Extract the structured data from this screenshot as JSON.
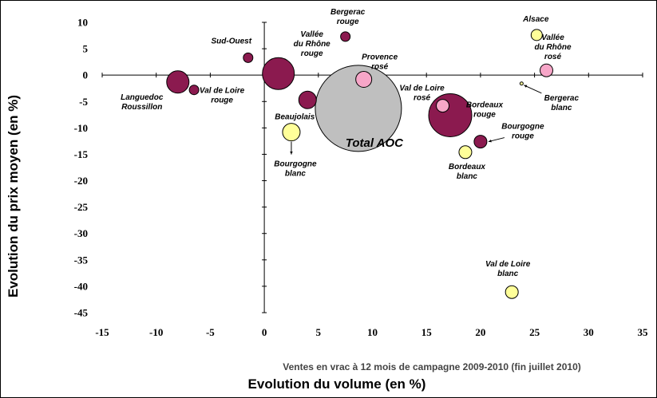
{
  "chart_data": {
    "type": "scatter",
    "variant": "bubble",
    "title": "",
    "subtitle": "Ventes en vrac à 12 mois de campagne 2009-2010 (fin juillet 2010)",
    "xlabel": "Evolution du volume (en %)",
    "ylabel": "Evolution du prix moyen (en %)",
    "xlim": [
      -15,
      35
    ],
    "ylim": [
      -45,
      10
    ],
    "x_ticks": [
      "-15",
      "-10",
      "-5",
      "0",
      "5",
      "10",
      "15",
      "20",
      "25",
      "30",
      "35"
    ],
    "y_ticks": [
      "10",
      "5",
      "0",
      "-5",
      "-10",
      "-15",
      "-20",
      "-25",
      "-30",
      "-35",
      "-40",
      "-45"
    ],
    "grid": false,
    "legend": "none",
    "colors": {
      "rouge": "#8b1a4f",
      "rose": "#f7a6c8",
      "blanc": "#ffff99",
      "total": "#bfbfbf",
      "outline": "#000000"
    },
    "points": [
      {
        "label": "Languedoc Roussillon",
        "lines": [
          "Languedoc",
          "Roussillon"
        ],
        "x": -8,
        "y": -1.3,
        "size": 14,
        "color": "rouge"
      },
      {
        "label": "Val de Loire rouge",
        "lines": [
          "Val de Loire",
          "rouge"
        ],
        "x": -6.5,
        "y": -2.8,
        "size": 6,
        "color": "rouge"
      },
      {
        "label": "Sud-Ouest",
        "lines": [
          "Sud-Ouest"
        ],
        "x": -1.5,
        "y": 3.3,
        "size": 6,
        "color": "rouge"
      },
      {
        "label": "Vallée du Rhône rouge",
        "lines": [
          "Vallée",
          "du Rhône",
          "rouge"
        ],
        "x": 1.3,
        "y": 0.3,
        "size": 20,
        "color": "rouge"
      },
      {
        "label": "Beaujolais",
        "lines": [
          "Beaujolais"
        ],
        "x": 4,
        "y": -4.7,
        "size": 11,
        "color": "rouge"
      },
      {
        "label": "Bourgogne blanc",
        "lines": [
          "Bourgogne",
          "blanc"
        ],
        "x": 2.5,
        "y": -10.8,
        "size": 11,
        "color": "blanc"
      },
      {
        "label": "Bergerac rouge",
        "lines": [
          "Bergerac",
          "rouge"
        ],
        "x": 7.5,
        "y": 7.3,
        "size": 6,
        "color": "rouge"
      },
      {
        "label": "Provence rosé",
        "lines": [
          "Provence",
          "rosé"
        ],
        "x": 9.2,
        "y": -0.8,
        "size": 10,
        "color": "rose"
      },
      {
        "label": "Total AOC",
        "lines": [
          "Total AOC"
        ],
        "x": 8.7,
        "y": -6.3,
        "size": 54,
        "color": "total"
      },
      {
        "label": "Val de Loire rosé",
        "lines": [
          "Val de Loire",
          "rosé"
        ],
        "x": 16.5,
        "y": -5.8,
        "size": 8,
        "color": "rose"
      },
      {
        "label": "Bordeaux rouge",
        "lines": [
          "Bordeaux",
          "rouge"
        ],
        "x": 17.2,
        "y": -7.6,
        "size": 27,
        "color": "rouge"
      },
      {
        "label": "Bourgogne rouge",
        "lines": [
          "Bourgogne",
          "rouge"
        ],
        "x": 20,
        "y": -12.6,
        "size": 8,
        "color": "rouge"
      },
      {
        "label": "Bordeaux blanc",
        "lines": [
          "Bordeaux",
          "blanc"
        ],
        "x": 18.6,
        "y": -14.6,
        "size": 8,
        "color": "blanc"
      },
      {
        "label": "Alsace",
        "lines": [
          "Alsace"
        ],
        "x": 25.2,
        "y": 7.6,
        "size": 7,
        "color": "blanc"
      },
      {
        "label": "Vallée du Rhône rosé",
        "lines": [
          "Vallée",
          "du Rhône",
          "rosé"
        ],
        "x": 26.1,
        "y": 0.9,
        "size": 8,
        "color": "rose"
      },
      {
        "label": "Bergerac blanc",
        "lines": [
          "Bergerac",
          "blanc"
        ],
        "x": 23.8,
        "y": -1.6,
        "size": 2,
        "color": "blanc"
      },
      {
        "label": "Val de Loire blanc",
        "lines": [
          "Val de Loire",
          "blanc"
        ],
        "x": 22.9,
        "y": -41.1,
        "size": 8,
        "color": "blanc"
      }
    ]
  }
}
